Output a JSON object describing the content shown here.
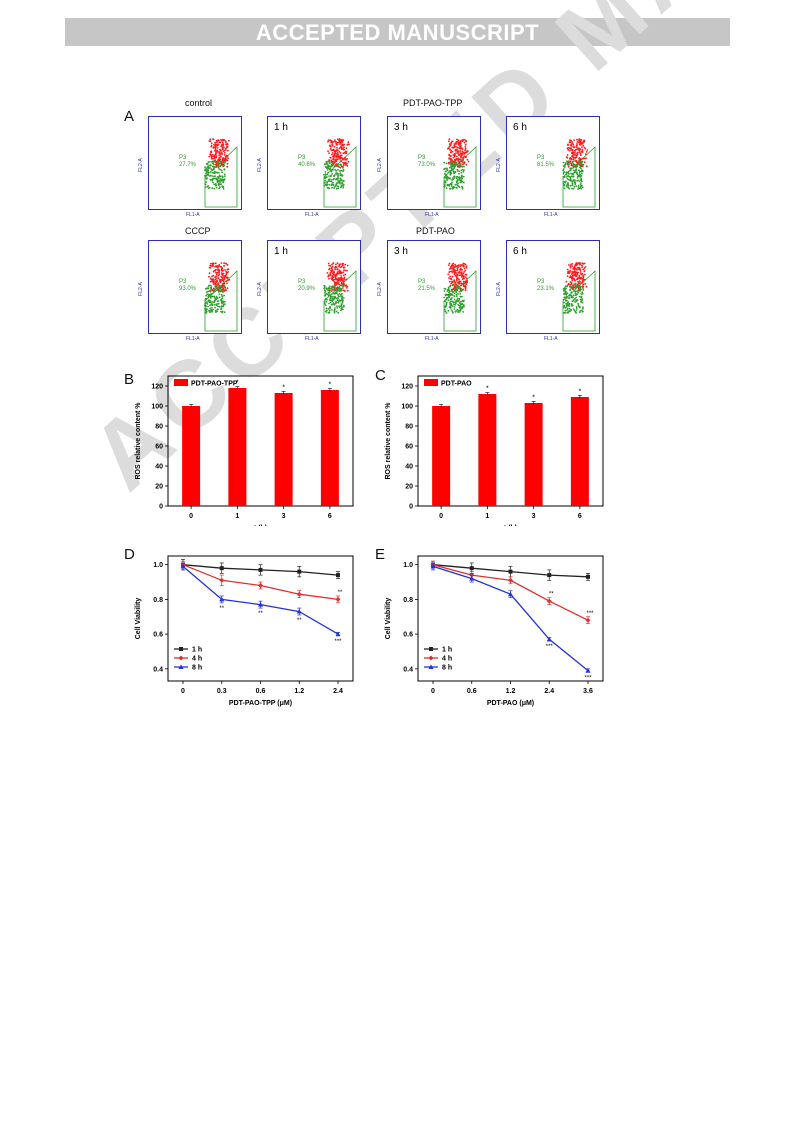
{
  "header": {
    "banner": "ACCEPTED MANUSCRIPT",
    "watermark": "ACCEPTED MANUSCRIPT"
  },
  "panels": {
    "A": "A",
    "B": "B",
    "C": "C",
    "D": "D",
    "E": "E"
  },
  "flow": {
    "xlabel": "FL1-A",
    "ylabel": "FL2-A",
    "row1_titles": [
      "control",
      "PDT-PAO-TPP"
    ],
    "row2_titles": [
      "CCCP",
      "PDT-PAO"
    ],
    "row1": [
      {
        "time": "",
        "gate": "P3",
        "pct": "27.7%"
      },
      {
        "time": "1 h",
        "gate": "P3",
        "pct": "40.6%"
      },
      {
        "time": "3 h",
        "gate": "P3",
        "pct": "73.0%"
      },
      {
        "time": "6 h",
        "gate": "P3",
        "pct": "81.5%"
      }
    ],
    "row2": [
      {
        "time": "",
        "gate": "P3",
        "pct": "93.0%"
      },
      {
        "time": "1 h",
        "gate": "P3",
        "pct": "20.9%"
      },
      {
        "time": "3 h",
        "gate": "P3",
        "pct": "21.5%"
      },
      {
        "time": "6 h",
        "gate": "P3",
        "pct": "23.1%"
      }
    ]
  },
  "chart_data": [
    {
      "panel": "B",
      "type": "bar",
      "categories": [
        "0",
        "1",
        "3",
        "6"
      ],
      "series": [
        {
          "name": "PDT-PAO-TPP",
          "values": [
            100,
            118,
            113,
            116
          ],
          "errors": [
            1.5,
            1.5,
            1.5,
            1.5
          ]
        }
      ],
      "annotations": [
        "",
        "*",
        "*",
        "*"
      ],
      "xlabel": "t (h)",
      "ylabel": "ROS relative content %",
      "ylim": [
        0,
        130
      ],
      "yticks": [
        0,
        20,
        40,
        60,
        80,
        100,
        120
      ],
      "color": "#ff0000"
    },
    {
      "panel": "C",
      "type": "bar",
      "categories": [
        "0",
        "1",
        "3",
        "6"
      ],
      "series": [
        {
          "name": "PDT-PAO",
          "values": [
            100,
            112,
            103,
            109
          ],
          "errors": [
            1.5,
            1.5,
            1.5,
            1.5
          ]
        }
      ],
      "annotations": [
        "",
        "*",
        "*",
        "*"
      ],
      "xlabel": "t (h)",
      "ylabel": "ROS relative content %",
      "ylim": [
        0,
        130
      ],
      "yticks": [
        0,
        20,
        40,
        60,
        80,
        100,
        120
      ],
      "color": "#ff0000"
    },
    {
      "panel": "D",
      "type": "line",
      "categories": [
        "0",
        "0.3",
        "0.6",
        "1.2",
        "2.4"
      ],
      "series": [
        {
          "name": "1 h",
          "color": "#222222",
          "marker": "square",
          "values": [
            1.0,
            0.98,
            0.97,
            0.96,
            0.94
          ],
          "errors": [
            0.03,
            0.03,
            0.03,
            0.03,
            0.02
          ],
          "stars": [
            "",
            "",
            "",
            "",
            ""
          ]
        },
        {
          "name": "4 h",
          "color": "#e03030",
          "marker": "diamond",
          "values": [
            1.0,
            0.91,
            0.88,
            0.83,
            0.8
          ],
          "errors": [
            0.02,
            0.03,
            0.02,
            0.02,
            0.02
          ],
          "stars": [
            "",
            "",
            "",
            "",
            "**"
          ]
        },
        {
          "name": "8 h",
          "color": "#2233dd",
          "marker": "triangle",
          "values": [
            0.99,
            0.8,
            0.77,
            0.73,
            0.6
          ],
          "errors": [
            0.02,
            0.02,
            0.02,
            0.02,
            0.01
          ],
          "stars": [
            "",
            "**",
            "**",
            "**",
            "***"
          ]
        }
      ],
      "xlabel": "PDT-PAO-TPP (μM)",
      "ylabel": "Cell Viability",
      "ylim": [
        0.33,
        1.05
      ],
      "yticks": [
        0.4,
        0.6,
        0.8,
        1.0
      ]
    },
    {
      "panel": "E",
      "type": "line",
      "categories": [
        "0",
        "0.6",
        "1.2",
        "2.4",
        "3.6"
      ],
      "series": [
        {
          "name": "1 h",
          "color": "#222222",
          "marker": "square",
          "values": [
            1.0,
            0.98,
            0.96,
            0.94,
            0.93
          ],
          "errors": [
            0.02,
            0.03,
            0.03,
            0.03,
            0.02
          ],
          "stars": [
            "",
            "",
            "",
            "",
            ""
          ]
        },
        {
          "name": "4 h",
          "color": "#e03030",
          "marker": "diamond",
          "values": [
            1.0,
            0.94,
            0.91,
            0.79,
            0.68
          ],
          "errors": [
            0.02,
            0.02,
            0.02,
            0.02,
            0.02
          ],
          "stars": [
            "",
            "",
            "",
            "**",
            "***"
          ]
        },
        {
          "name": "8 h",
          "color": "#2233dd",
          "marker": "triangle",
          "values": [
            0.99,
            0.92,
            0.83,
            0.57,
            0.39
          ],
          "errors": [
            0.02,
            0.02,
            0.02,
            0.01,
            0.01
          ],
          "stars": [
            "",
            "",
            "",
            "***",
            "***"
          ]
        }
      ],
      "xlabel": "PDT-PAO (μM)",
      "ylabel": "Cell Viability",
      "ylim": [
        0.33,
        1.05
      ],
      "yticks": [
        0.4,
        0.6,
        0.8,
        1.0
      ]
    }
  ]
}
